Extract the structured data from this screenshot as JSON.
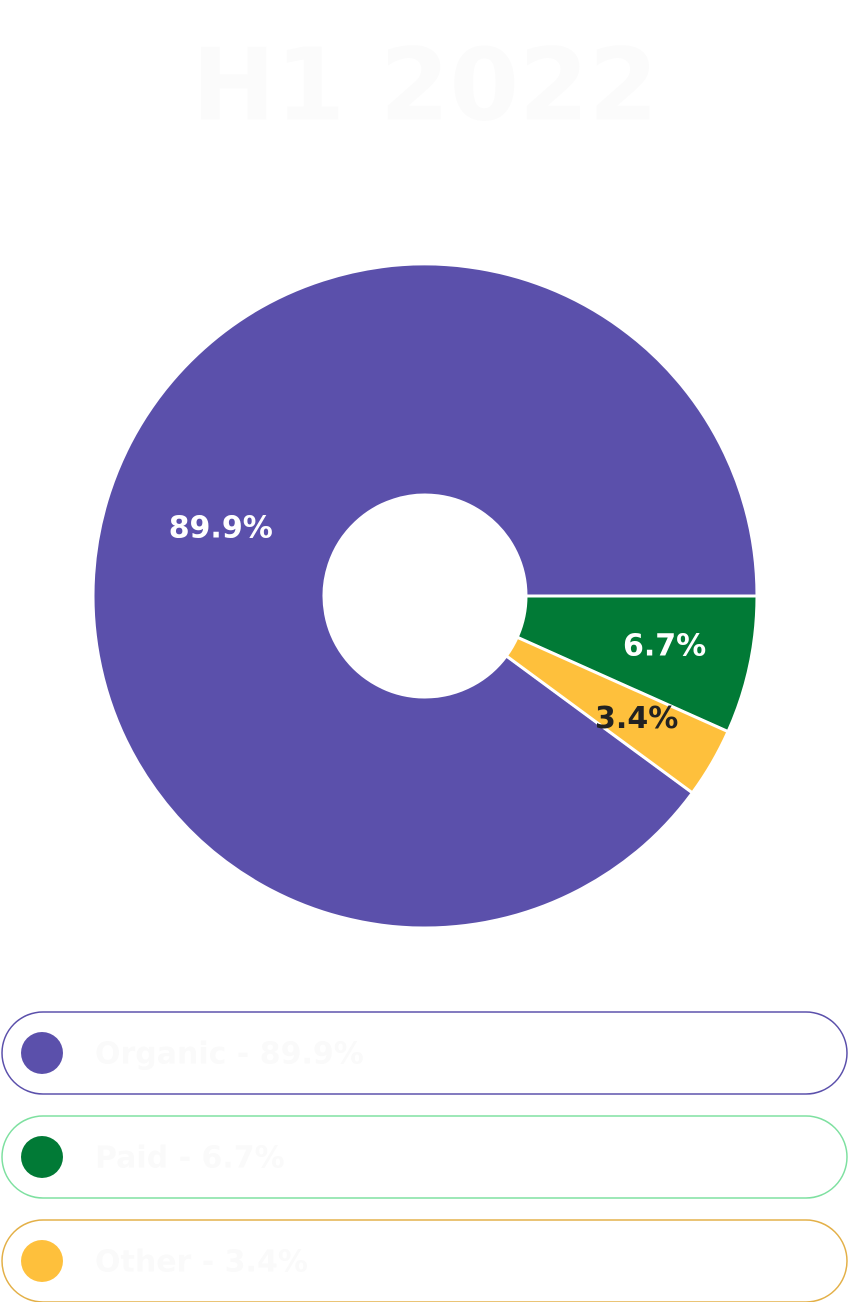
{
  "chart_data": {
    "type": "donut",
    "title": "H1 2022",
    "categories": [
      "Organic",
      "Paid",
      "Other"
    ],
    "values": [
      89.9,
      6.7,
      3.4
    ],
    "value_labels": [
      "89.9%",
      "6.7%",
      "3.4%"
    ],
    "colors": [
      "#5b50ab",
      "#017a36",
      "#fec03c"
    ],
    "legend": [
      "Organic - 89.9%",
      "Paid - 6.7%",
      "Other - 3.4%"
    ]
  }
}
